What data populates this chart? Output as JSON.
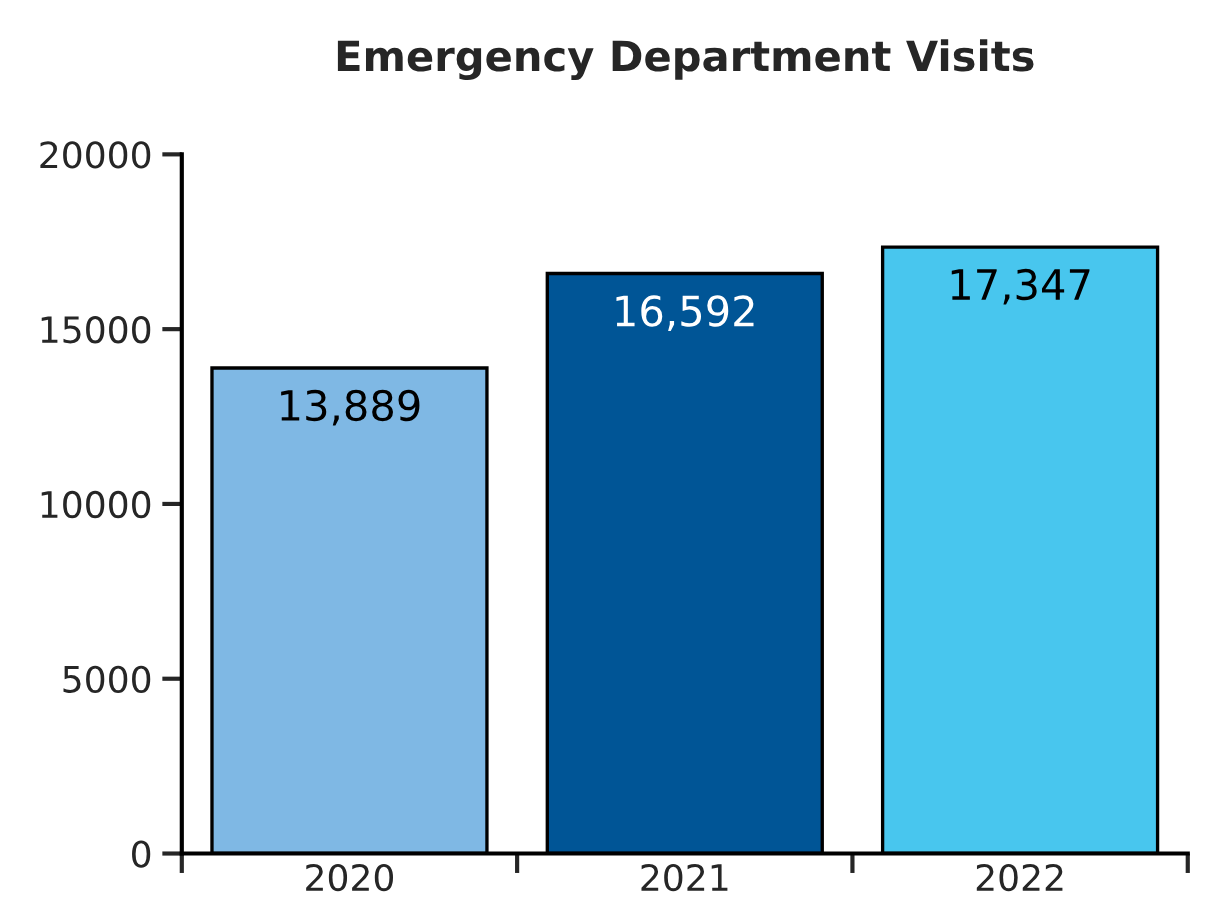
{
  "chart_data": {
    "type": "bar",
    "title": "Emergency Department Visits",
    "categories": [
      "2020",
      "2021",
      "2022"
    ],
    "values": [
      13889,
      16592,
      17347
    ],
    "colors": [
      "#7fb8e4",
      "#005596",
      "#48c6ee"
    ],
    "value_labels": [
      "13,889",
      "16,592",
      "17,347"
    ],
    "ylim": [
      0,
      20000
    ],
    "yticks": [
      0,
      5000,
      10000,
      15000,
      20000
    ],
    "grid": false
  }
}
